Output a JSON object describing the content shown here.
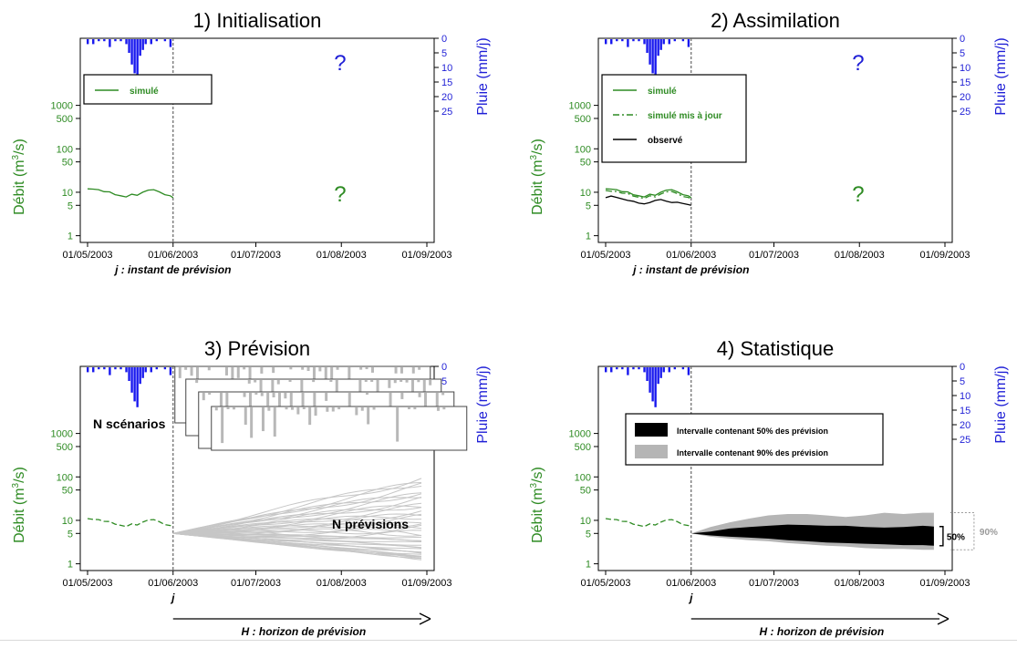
{
  "colors": {
    "green": "#2e8b23",
    "blue": "#1f1fd6",
    "rain": "#1818ee",
    "gray_rain": "#b8b8b8",
    "ens_line": "#c6c6c6",
    "band50": "#000000",
    "band90": "#b5b5b5",
    "obs": "#000000",
    "axis": "#000000",
    "divider": "#666666"
  },
  "shared": {
    "y_axis_label_main": "Débit (m",
    "y_axis_label_sup": "3",
    "y_axis_label_end": "/s)",
    "y2_axis_label": "Pluie (mm/j)",
    "x_ticks": [
      "01/05/2003",
      "01/06/2003",
      "01/07/2003",
      "01/08/2003",
      "01/09/2003"
    ],
    "y_ticks": [
      "1",
      "5",
      "10",
      "50",
      "100",
      "500",
      "1000"
    ],
    "y2_ticks": [
      "0",
      "5",
      "10",
      "15",
      "20",
      "25"
    ],
    "question_mark": "?",
    "arrow_label": "H : horizon de prévision"
  },
  "panels": [
    {
      "title": "1) Initialisation",
      "xlabel": "j : instant de prévision",
      "legend": [
        "simulé"
      ]
    },
    {
      "title": "2) Assimilation",
      "xlabel": "j : instant de prévision",
      "legend": [
        "simulé",
        "simulé mis à jour",
        "observé"
      ]
    },
    {
      "title": "3) Prévision",
      "xlabel": "j",
      "annot_scenarios": "N scénarios",
      "annot_previsions": "N prévisions"
    },
    {
      "title": "4) Statistique",
      "xlabel": "j",
      "legend": [
        "Intervalle contenant 50% des prévision",
        "Intervalle contenant 90% des prévision"
      ],
      "label50": "50%",
      "label90": "90%"
    }
  ],
  "chart_data": [
    {
      "type": "line",
      "title": "1) Initialisation",
      "xlabel": "j : instant de prévision",
      "ylabel": "Débit (m3/s)",
      "y2label": "Pluie (mm/j)",
      "y_scale": "log",
      "ylim": [
        0.7,
        35000
      ],
      "y2lim": [
        0,
        70
      ],
      "x_range": [
        "01/05/2003",
        "01/09/2003"
      ],
      "forecast_date": "01/06/2003",
      "series": [
        {
          "name": "simulé",
          "dates": [
            "01/05/2003",
            "03/05/2003",
            "05/05/2003",
            "07/05/2003",
            "09/05/2003",
            "11/05/2003",
            "13/05/2003",
            "15/05/2003",
            "17/05/2003",
            "19/05/2003",
            "21/05/2003",
            "23/05/2003",
            "25/05/2003",
            "27/05/2003",
            "29/05/2003",
            "31/05/2003",
            "01/06/2003"
          ],
          "values": [
            12,
            11.8,
            11.5,
            10.3,
            10.2,
            8.8,
            8.3,
            7.8,
            9.0,
            8.5,
            10.0,
            11.2,
            11.5,
            10.2,
            8.8,
            8.3,
            7.5
          ]
        }
      ],
      "rain": {
        "dates": [
          "01/05/2003",
          "03/05/2003",
          "05/05/2003",
          "07/05/2003",
          "09/05/2003",
          "11/05/2003",
          "13/05/2003",
          "15/05/2003",
          "16/05/2003",
          "17/05/2003",
          "18/05/2003",
          "19/05/2003",
          "20/05/2003",
          "21/05/2003",
          "22/05/2003",
          "24/05/2003",
          "26/05/2003",
          "29/05/2003",
          "31/05/2003"
        ],
        "values": [
          2,
          2,
          1,
          1,
          3,
          1,
          1,
          2,
          5,
          9,
          12,
          14,
          6,
          4,
          2,
          2,
          1,
          1,
          3
        ]
      },
      "legend_position": "top-left"
    },
    {
      "type": "line",
      "title": "2) Assimilation",
      "xlabel": "j : instant de prévision",
      "ylabel": "Débit (m3/s)",
      "y2label": "Pluie (mm/j)",
      "y_scale": "log",
      "ylim": [
        0.7,
        35000
      ],
      "y2lim": [
        0,
        70
      ],
      "x_range": [
        "01/05/2003",
        "01/09/2003"
      ],
      "forecast_date": "01/06/2003",
      "series": [
        {
          "name": "simulé",
          "dates": [
            "01/05/2003",
            "03/05/2003",
            "05/05/2003",
            "07/05/2003",
            "09/05/2003",
            "11/05/2003",
            "13/05/2003",
            "15/05/2003",
            "17/05/2003",
            "19/05/2003",
            "21/05/2003",
            "23/05/2003",
            "25/05/2003",
            "27/05/2003",
            "29/05/2003",
            "31/05/2003",
            "01/06/2003"
          ],
          "values": [
            12,
            11.8,
            11.5,
            10.3,
            10.2,
            8.8,
            8.3,
            7.8,
            9.0,
            8.5,
            10.0,
            11.2,
            11.5,
            10.2,
            8.8,
            8.3,
            7.5
          ]
        },
        {
          "name": "simulé mis à jour",
          "dates": [
            "01/05/2003",
            "03/05/2003",
            "05/05/2003",
            "07/05/2003",
            "09/05/2003",
            "11/05/2003",
            "13/05/2003",
            "15/05/2003",
            "17/05/2003",
            "19/05/2003",
            "21/05/2003",
            "23/05/2003",
            "25/05/2003",
            "27/05/2003",
            "29/05/2003",
            "31/05/2003",
            "01/06/2003"
          ],
          "values": [
            11,
            10.5,
            10.4,
            9.5,
            9.4,
            8.2,
            7.7,
            7.2,
            8.3,
            7.8,
            9.1,
            10.2,
            10.4,
            9.3,
            8.0,
            7.6,
            6.9
          ]
        },
        {
          "name": "observé",
          "dates": [
            "01/05/2003",
            "03/05/2003",
            "05/05/2003",
            "07/05/2003",
            "09/05/2003",
            "11/05/2003",
            "13/05/2003",
            "15/05/2003",
            "17/05/2003",
            "19/05/2003",
            "21/05/2003",
            "23/05/2003",
            "25/05/2003",
            "27/05/2003",
            "29/05/2003",
            "31/05/2003",
            "01/06/2003"
          ],
          "values": [
            7.5,
            8.2,
            7.6,
            7.0,
            6.5,
            6.2,
            5.6,
            5.4,
            5.8,
            6.5,
            6.8,
            6.2,
            5.8,
            5.9,
            5.5,
            5.2,
            5.0
          ]
        }
      ],
      "rain": {
        "dates": [
          "01/05/2003",
          "03/05/2003",
          "05/05/2003",
          "07/05/2003",
          "09/05/2003",
          "11/05/2003",
          "13/05/2003",
          "15/05/2003",
          "16/05/2003",
          "17/05/2003",
          "18/05/2003",
          "19/05/2003",
          "20/05/2003",
          "21/05/2003",
          "22/05/2003",
          "24/05/2003",
          "26/05/2003",
          "29/05/2003",
          "31/05/2003"
        ],
        "values": [
          2,
          2,
          1,
          1,
          3,
          1,
          1,
          2,
          5,
          9,
          12,
          14,
          6,
          4,
          2,
          2,
          1,
          1,
          3
        ]
      },
      "legend_position": "top-left"
    },
    {
      "type": "line",
      "title": "3) Prévision",
      "xlabel": "j",
      "ylabel": "Débit (m3/s)",
      "y2label": "Pluie (mm/j)",
      "y_scale": "log",
      "ylim": [
        0.7,
        35000
      ],
      "y2lim": [
        0,
        70
      ],
      "x_range": [
        "01/05/2003",
        "01/09/2003"
      ],
      "forecast_date": "01/06/2003",
      "past_series": {
        "dates": [
          "01/05/2003",
          "03/05/2003",
          "05/05/2003",
          "07/05/2003",
          "09/05/2003",
          "11/05/2003",
          "13/05/2003",
          "15/05/2003",
          "17/05/2003",
          "19/05/2003",
          "21/05/2003",
          "23/05/2003",
          "25/05/2003",
          "27/05/2003",
          "29/05/2003",
          "31/05/2003",
          "01/06/2003"
        ],
        "values": [
          11,
          10.5,
          10.4,
          9.5,
          9.4,
          8.2,
          7.7,
          7.2,
          8.3,
          7.8,
          9.1,
          10.2,
          10.4,
          9.3,
          8.0,
          7.6,
          6.9
        ]
      },
      "ensemble": {
        "start_date": "01/06/2003",
        "start_value": 5,
        "count": 40,
        "end_date": "30/08/2003",
        "end_range": [
          1.3,
          95
        ]
      },
      "rain": {
        "dates": [
          "01/05/2003",
          "03/05/2003",
          "05/05/2003",
          "07/05/2003",
          "09/05/2003",
          "11/05/2003",
          "13/05/2003",
          "15/05/2003",
          "16/05/2003",
          "17/05/2003",
          "18/05/2003",
          "19/05/2003",
          "20/05/2003",
          "21/05/2003",
          "22/05/2003",
          "24/05/2003",
          "26/05/2003",
          "29/05/2003",
          "31/05/2003"
        ],
        "values": [
          2,
          2,
          1,
          1,
          3,
          1,
          1,
          2,
          5,
          9,
          12,
          14,
          6,
          4,
          2,
          2,
          1,
          1,
          3
        ]
      },
      "rain_scenarios_count": 4
    },
    {
      "type": "area",
      "title": "4) Statistique",
      "xlabel": "j",
      "ylabel": "Débit (m3/s)",
      "y2label": "Pluie (mm/j)",
      "y_scale": "log",
      "ylim": [
        0.7,
        35000
      ],
      "y2lim": [
        0,
        70
      ],
      "x_range": [
        "01/05/2003",
        "01/09/2003"
      ],
      "forecast_date": "01/06/2003",
      "past_series": {
        "dates": [
          "01/05/2003",
          "03/05/2003",
          "05/05/2003",
          "07/05/2003",
          "09/05/2003",
          "11/05/2003",
          "13/05/2003",
          "15/05/2003",
          "17/05/2003",
          "19/05/2003",
          "21/05/2003",
          "23/05/2003",
          "25/05/2003",
          "27/05/2003",
          "29/05/2003",
          "31/05/2003",
          "01/06/2003"
        ],
        "values": [
          11,
          10.5,
          10.4,
          9.5,
          9.4,
          8.2,
          7.7,
          7.2,
          8.3,
          7.8,
          9.1,
          10.2,
          10.4,
          9.3,
          8.0,
          7.6,
          6.9
        ]
      },
      "bands": {
        "dates": [
          "01/06/2003",
          "08/06/2003",
          "15/06/2003",
          "22/06/2003",
          "29/06/2003",
          "06/07/2003",
          "13/07/2003",
          "20/07/2003",
          "27/07/2003",
          "03/08/2003",
          "10/08/2003",
          "17/08/2003",
          "24/08/2003",
          "28/08/2003"
        ],
        "q05": [
          5,
          4.2,
          3.8,
          3.5,
          3.3,
          3.0,
          2.8,
          2.6,
          2.5,
          2.3,
          2.2,
          2.2,
          2.1,
          2.1
        ],
        "q25": [
          5,
          4.5,
          4.2,
          4.0,
          3.8,
          3.5,
          3.3,
          3.1,
          3.0,
          2.9,
          2.8,
          2.7,
          2.7,
          2.6
        ],
        "q75": [
          5,
          5.5,
          6.5,
          7.0,
          7.5,
          8.0,
          7.8,
          7.5,
          7.5,
          7.0,
          6.8,
          7.0,
          7.5,
          7.2
        ],
        "q95": [
          5,
          7,
          9,
          11,
          13,
          14,
          14,
          13,
          12,
          13,
          15,
          14,
          15,
          15
        ]
      },
      "rain": {
        "dates": [
          "01/05/2003",
          "03/05/2003",
          "05/05/2003",
          "07/05/2003",
          "09/05/2003",
          "11/05/2003",
          "13/05/2003",
          "15/05/2003",
          "16/05/2003",
          "17/05/2003",
          "18/05/2003",
          "19/05/2003",
          "20/05/2003",
          "21/05/2003",
          "22/05/2003",
          "24/05/2003",
          "26/05/2003",
          "29/05/2003",
          "31/05/2003"
        ],
        "values": [
          2,
          2,
          1,
          1,
          3,
          1,
          1,
          2,
          5,
          9,
          12,
          14,
          6,
          4,
          2,
          2,
          1,
          1,
          3
        ]
      },
      "legend_position": "top-left"
    }
  ]
}
